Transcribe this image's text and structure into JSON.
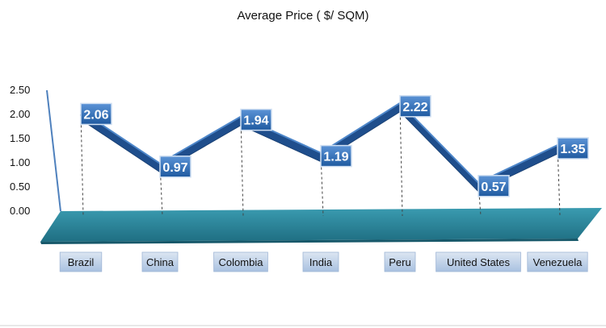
{
  "chart_data": {
    "type": "line",
    "title": "Average Price ( $/ SQM)",
    "xlabel": "",
    "ylabel": "",
    "categories": [
      "Brazil",
      "China",
      "Colombia",
      "India",
      "Peru",
      "United States",
      "Venezuela"
    ],
    "values": [
      2.06,
      0.97,
      1.94,
      1.19,
      2.22,
      0.57,
      1.35
    ],
    "data_labels": [
      "2.06",
      "0.97",
      "1.94",
      "1.19",
      "2.22",
      "0.57",
      "1.35"
    ],
    "yticks": [
      "0.00",
      "0.50",
      "1.00",
      "1.50",
      "2.00",
      "2.50"
    ],
    "ylim": [
      0,
      2.5
    ],
    "grid": false,
    "legend": "none",
    "colors": {
      "line": "#1f4e8c",
      "label_fill": "#2f6cb8",
      "floor": "#2f8a9e",
      "floor_dark": "#1d6174",
      "tick_box": "#b8cce4",
      "axis": "#4f81bd"
    }
  }
}
